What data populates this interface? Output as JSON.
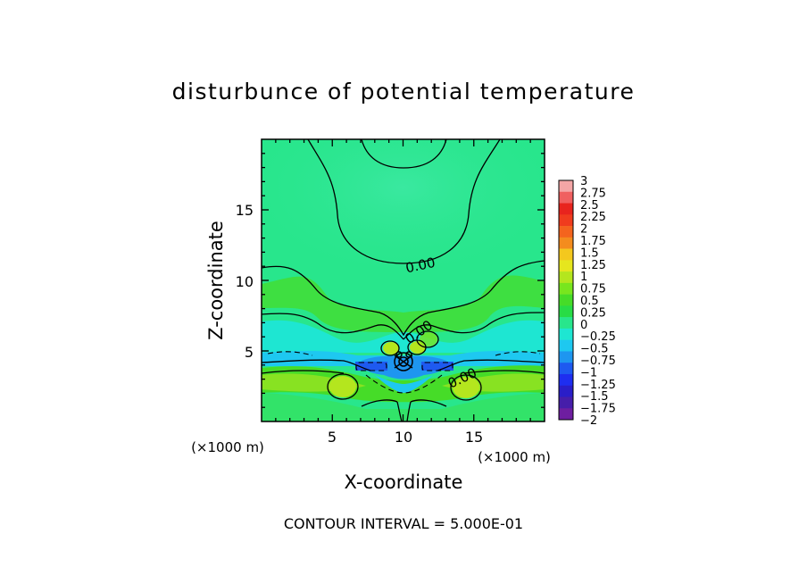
{
  "chart_data": {
    "type": "heatmap",
    "title": "disturbunce of potential temperature",
    "xlabel": "X-coordinate",
    "ylabel": "Z-coordinate",
    "x_unit": "(×1000 m)",
    "y_unit": "(×1000 m)",
    "xlim": [
      0,
      20
    ],
    "ylim": [
      0,
      20
    ],
    "x_ticks": [
      "5",
      "10",
      "15"
    ],
    "y_ticks": [
      "5",
      "10",
      "15"
    ],
    "contour_labels": [
      "0.00",
      "0.00",
      "0.00"
    ],
    "footer": "CONTOUR INTERVAL = 5.000E-01",
    "colorbar": {
      "labels": [
        "3",
        "2.75",
        "2.5",
        "2.25",
        "2",
        "1.75",
        "1.5",
        "1.25",
        "1",
        "0.75",
        "0.5",
        "0.25",
        "0",
        "−0.25",
        "−0.5",
        "−0.75",
        "−1",
        "−1.25",
        "−1.5",
        "−1.75",
        "−2"
      ],
      "colors": [
        "#f4a6a6",
        "#f06060",
        "#e8241e",
        "#f03c1e",
        "#f4641e",
        "#f48c1e",
        "#f4c81e",
        "#e6e61e",
        "#b4e61e",
        "#78e61e",
        "#46dc28",
        "#28dc46",
        "#28e68c",
        "#1ee6d2",
        "#1ec8f0",
        "#1e96f0",
        "#1e5af0",
        "#1e2ef0",
        "#2a1ec8",
        "#461eaa",
        "#6e1ea0"
      ]
    },
    "color_scale": {
      "0.25": "#28dc46",
      "0": "#28e68c",
      "-0.25": "#1ee6d2",
      "-0.5": "#1ec8f0",
      "-1": "#1e5af0"
    }
  }
}
